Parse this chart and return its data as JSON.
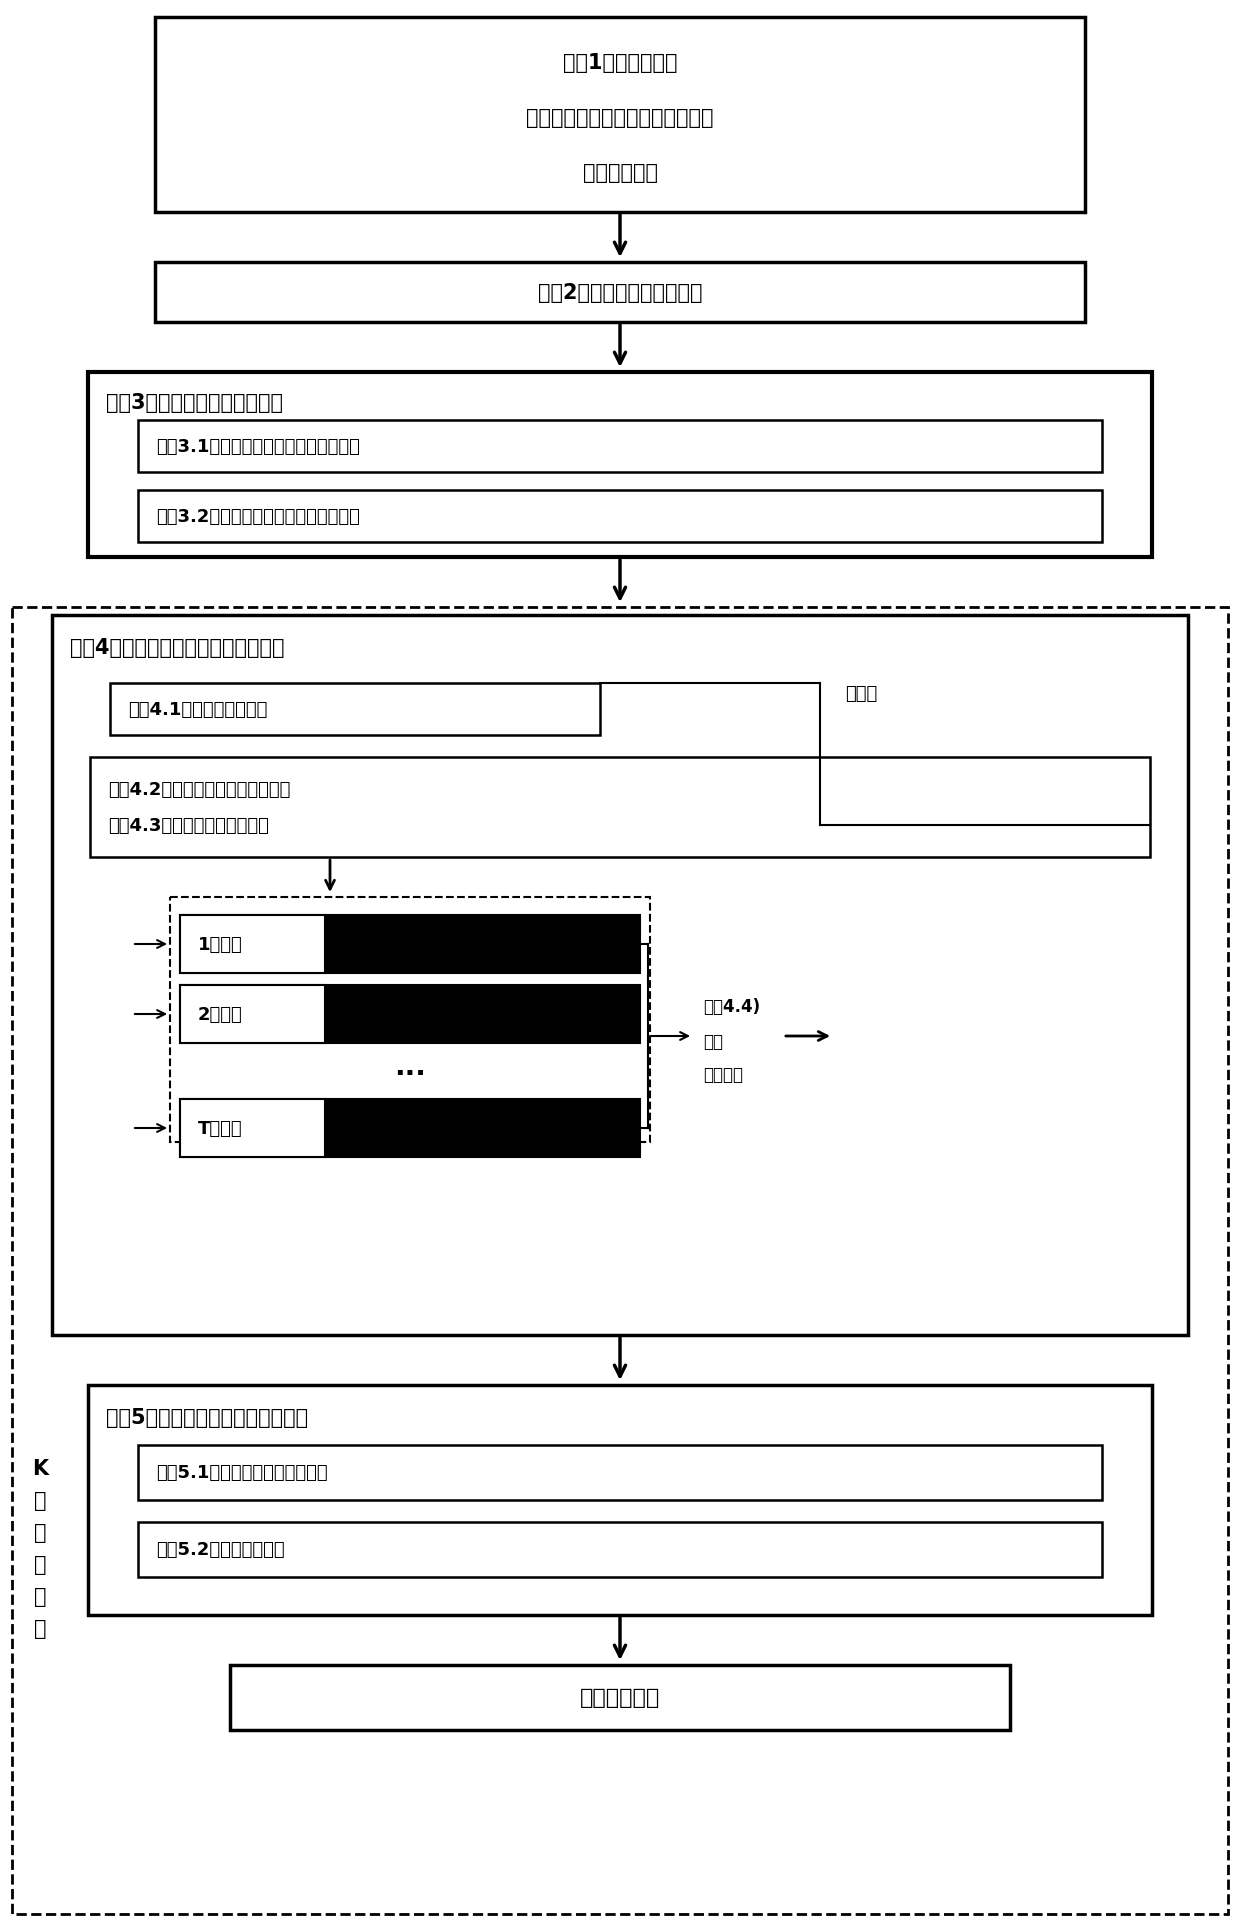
{
  "fig_width": 12.4,
  "fig_height": 19.33,
  "bg_color": "#ffffff",
  "step1_lines": [
    "步骤1）数据获取：",
    "采集不同脑状态下产生的脑电信号",
    "去伪迹预处理"
  ],
  "step2_text": "步骤2）计算多尺度时间序列",
  "step3_title": "步骤3）构建多尺度脑功能网络",
  "step3_1": "步骤3.1）基于相位相关性的脑功能网络",
  "step3_2": "步骤3.2）基于幅值相关性的脑功能网络",
  "step4_title": "步骤4）构建模糊门控多通路神经网络",
  "step4_1": "步骤4.1）构造自编码网络",
  "step4_2": "步骤4.2）构建多通路卷积神经网络",
  "step4_3": "步骤4.3）初始化浅层网络参数",
  "pretrain": "预训练",
  "scale1": "1尺度卷",
  "scale2": "2尺度卷",
  "scale_dots": "···",
  "scaleT": "T尺度卷",
  "step4_4_line1": "步骤4.4)",
  "step4_4_line2": "模糊",
  "step4_4_line3": "门控单元",
  "step5_title": "步骤5）设计带正则惩罚的损失函数",
  "step5_1": "步骤5.1）计算神经网络反传误差",
  "step5_2": "步骤5.2）附加惩罚因子",
  "final": "分类性能评估",
  "kfold_chars": [
    "K",
    "折",
    "交",
    "叉",
    "验",
    "证"
  ]
}
